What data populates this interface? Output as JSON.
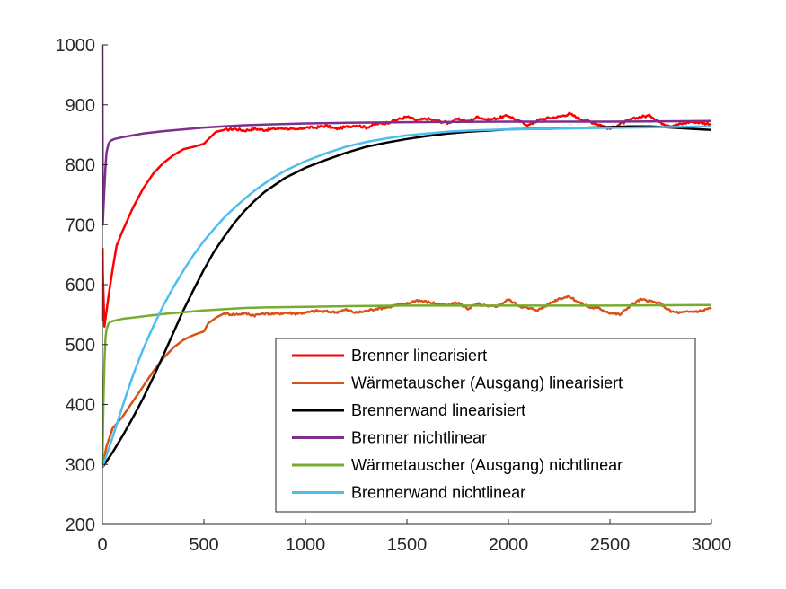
{
  "chart_data": {
    "type": "line",
    "title": "",
    "xlabel": "",
    "ylabel": "",
    "xlim": [
      0,
      3000
    ],
    "ylim": [
      200,
      1000
    ],
    "xticks": [
      0,
      500,
      1000,
      1500,
      2000,
      2500,
      3000
    ],
    "yticks": [
      200,
      300,
      400,
      500,
      600,
      700,
      800,
      900,
      1000
    ],
    "grid": false,
    "legend_position": "bottom-right",
    "series": [
      {
        "name": "Brenner linearisiert",
        "color": "#ff0000",
        "noise": true,
        "x": [
          0,
          1,
          2,
          10,
          30,
          50,
          70,
          100,
          150,
          200,
          250,
          300,
          350,
          400,
          450,
          500,
          520,
          560,
          600,
          650,
          700,
          750,
          800,
          850,
          900,
          950,
          1000,
          1050,
          1100,
          1150,
          1200,
          1250,
          1300,
          1350,
          1400,
          1450,
          1500,
          1550,
          1600,
          1650,
          1700,
          1750,
          1800,
          1850,
          1900,
          1950,
          2000,
          2050,
          2100,
          2150,
          2200,
          2250,
          2300,
          2350,
          2400,
          2450,
          2500,
          2550,
          2600,
          2650,
          2700,
          2750,
          2800,
          2850,
          2900,
          2950,
          3000
        ],
        "y": [
          540,
          660,
          620,
          530,
          580,
          625,
          665,
          690,
          728,
          760,
          785,
          803,
          816,
          826,
          830,
          835,
          842,
          855,
          858,
          860,
          857,
          860,
          858,
          860,
          861,
          858,
          862,
          862,
          865,
          860,
          863,
          866,
          862,
          868,
          870,
          875,
          880,
          874,
          877,
          873,
          870,
          876,
          872,
          880,
          875,
          878,
          882,
          873,
          866,
          875,
          878,
          880,
          885,
          877,
          872,
          867,
          860,
          868,
          875,
          880,
          882,
          870,
          865,
          868,
          872,
          870,
          868
        ]
      },
      {
        "name": "Wärmetauscher (Ausgang) linearisiert",
        "color": "#d95319",
        "noise": true,
        "x": [
          0,
          20,
          50,
          80,
          100,
          150,
          200,
          250,
          300,
          350,
          400,
          450,
          500,
          520,
          560,
          600,
          650,
          700,
          750,
          800,
          850,
          900,
          950,
          1000,
          1050,
          1100,
          1150,
          1200,
          1250,
          1300,
          1350,
          1400,
          1450,
          1500,
          1550,
          1600,
          1650,
          1700,
          1750,
          1800,
          1850,
          1900,
          1950,
          2000,
          2050,
          2100,
          2150,
          2200,
          2250,
          2300,
          2350,
          2400,
          2450,
          2500,
          2550,
          2600,
          2650,
          2700,
          2750,
          2800,
          2850,
          2900,
          2950,
          3000
        ],
        "y": [
          295,
          330,
          360,
          372,
          380,
          405,
          430,
          455,
          477,
          495,
          508,
          516,
          522,
          535,
          545,
          552,
          550,
          552,
          549,
          552,
          551,
          553,
          552,
          553,
          556,
          555,
          554,
          558,
          553,
          556,
          560,
          562,
          566,
          568,
          574,
          571,
          568,
          565,
          570,
          560,
          568,
          563,
          565,
          575,
          565,
          560,
          558,
          568,
          577,
          580,
          570,
          562,
          560,
          553,
          550,
          565,
          575,
          572,
          568,
          555,
          553,
          555,
          556,
          562
        ]
      },
      {
        "name": "Brennerwand linearisiert",
        "color": "#000000",
        "noise": false,
        "x": [
          0,
          50,
          100,
          150,
          200,
          250,
          300,
          350,
          400,
          450,
          500,
          550,
          600,
          650,
          700,
          750,
          800,
          900,
          1000,
          1100,
          1200,
          1300,
          1400,
          1500,
          1600,
          1700,
          1800,
          1900,
          2000,
          2100,
          2200,
          2300,
          2400,
          2500,
          2600,
          2700,
          2800,
          2900,
          3000
        ],
        "y": [
          295,
          320,
          348,
          378,
          410,
          445,
          482,
          520,
          558,
          592,
          625,
          655,
          680,
          703,
          723,
          740,
          755,
          778,
          795,
          808,
          820,
          830,
          837,
          843,
          848,
          852,
          855,
          857,
          859,
          860,
          860,
          861,
          862,
          863,
          864,
          864,
          862,
          860,
          858
        ]
      },
      {
        "name": "Brenner nichtlinear",
        "color": "#7e2f8e",
        "noise": false,
        "x": [
          0,
          2,
          5,
          10,
          15,
          20,
          30,
          40,
          60,
          100,
          150,
          200,
          300,
          400,
          500,
          600,
          700,
          800,
          1000,
          1200,
          1500,
          2000,
          2500,
          3000
        ],
        "y": [
          1000,
          700,
          725,
          760,
          795,
          820,
          835,
          840,
          843,
          846,
          849,
          852,
          856,
          859,
          862,
          864,
          866,
          867,
          869,
          870,
          871,
          872,
          872,
          873
        ]
      },
      {
        "name": "Wärmetauscher (Ausgang) nichtlinear",
        "color": "#77ac30",
        "noise": false,
        "x": [
          0,
          5,
          10,
          15,
          20,
          30,
          40,
          60,
          100,
          150,
          200,
          300,
          400,
          500,
          600,
          700,
          800,
          1000,
          1200,
          1500,
          2000,
          2500,
          3000
        ],
        "y": [
          300,
          400,
          470,
          510,
          525,
          535,
          538,
          540,
          543,
          545,
          547,
          551,
          554,
          557,
          559,
          561,
          562,
          563,
          564,
          565,
          565,
          565,
          566
        ]
      },
      {
        "name": "Brennerwand nichtlinear",
        "color": "#4dbeee",
        "noise": false,
        "x": [
          0,
          50,
          100,
          150,
          200,
          250,
          300,
          350,
          400,
          450,
          500,
          550,
          600,
          650,
          700,
          750,
          800,
          850,
          900,
          1000,
          1100,
          1200,
          1300,
          1400,
          1500,
          1600,
          1700,
          1800,
          1900,
          2000,
          2200,
          2400,
          2600,
          2800,
          3000
        ],
        "y": [
          295,
          345,
          398,
          448,
          492,
          530,
          565,
          596,
          624,
          650,
          673,
          693,
          712,
          728,
          743,
          757,
          769,
          780,
          790,
          806,
          819,
          830,
          838,
          844,
          849,
          852,
          855,
          857,
          858,
          859,
          860,
          861,
          862,
          863,
          864
        ]
      }
    ]
  }
}
